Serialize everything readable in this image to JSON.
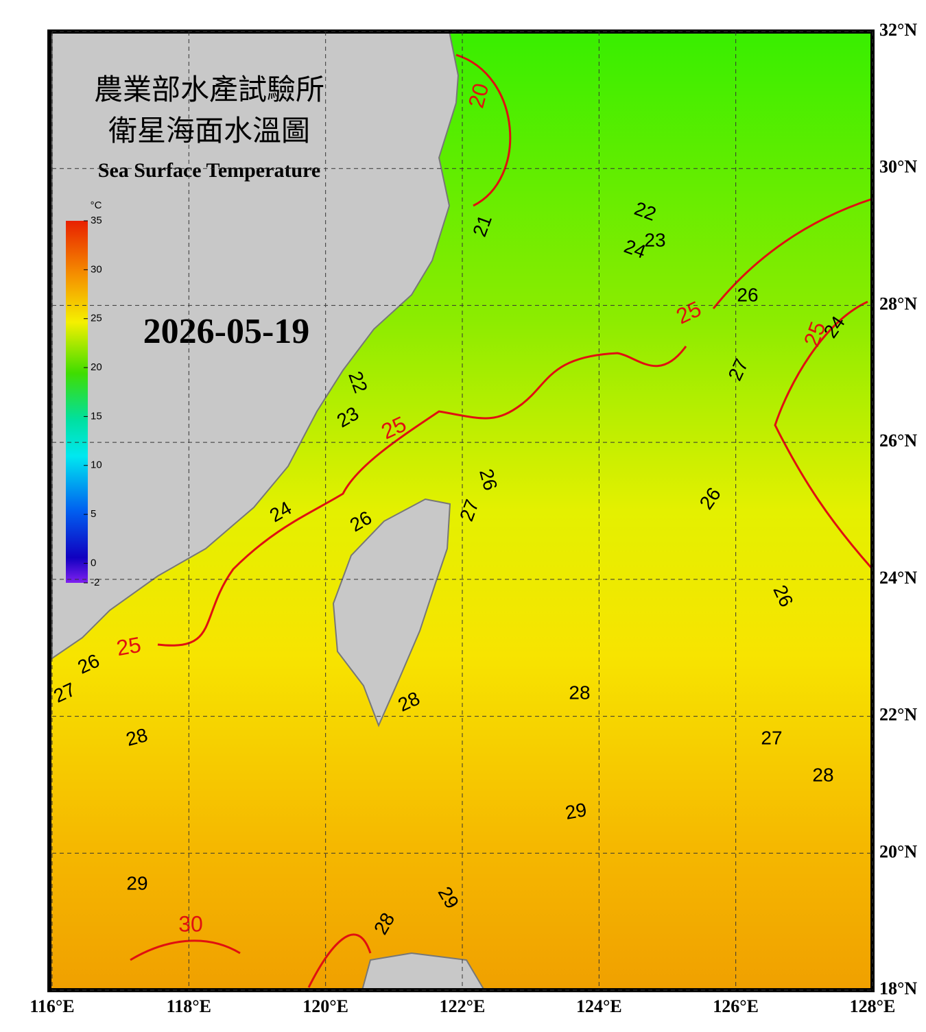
{
  "header": {
    "title_zh_1": "農業部水產試驗所",
    "title_zh_2": "衛星海面水溫圖",
    "title_en": "Sea Surface Temperature",
    "date": "2026-05-19"
  },
  "colorbar": {
    "unit": "°C",
    "lim": [
      -2,
      35
    ],
    "ticks": [
      35,
      30,
      25,
      20,
      15,
      10,
      5,
      0,
      -2
    ]
  },
  "map": {
    "lonlim": [
      116,
      128
    ],
    "latlim": [
      18,
      32
    ],
    "lonticks": [
      {
        "value": 116,
        "label": "116°E"
      },
      {
        "value": 118,
        "label": "118°E"
      },
      {
        "value": 120,
        "label": "120°E"
      },
      {
        "value": 122,
        "label": "122°E"
      },
      {
        "value": 124,
        "label": "124°E"
      },
      {
        "value": 126,
        "label": "126°E"
      },
      {
        "value": 128,
        "label": "128°E"
      }
    ],
    "latticks": [
      {
        "value": 32,
        "label": "32°N"
      },
      {
        "value": 30,
        "label": "30°N"
      },
      {
        "value": 28,
        "label": "28°N"
      },
      {
        "value": 26,
        "label": "26°N"
      },
      {
        "value": 24,
        "label": "24°N"
      },
      {
        "value": 22,
        "label": "22°N"
      },
      {
        "value": 20,
        "label": "20°N"
      },
      {
        "value": 18,
        "label": "18°N"
      }
    ],
    "contour_labels": [
      "20",
      "21",
      "22",
      "23",
      "24",
      "26",
      "25",
      "25",
      "24",
      "27",
      "22",
      "23",
      "25",
      "26",
      "27",
      "24",
      "26",
      "26",
      "26",
      "25",
      "26",
      "27",
      "28",
      "28",
      "28",
      "27",
      "28",
      "29",
      "29",
      "30",
      "29",
      "28"
    ]
  }
}
